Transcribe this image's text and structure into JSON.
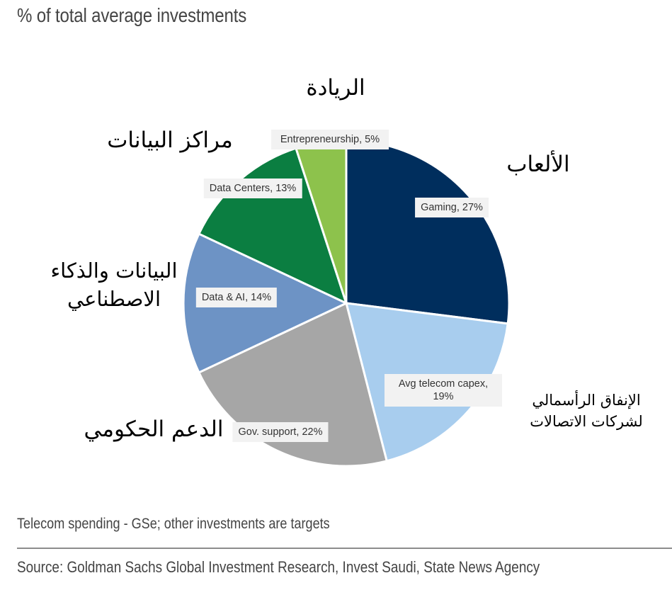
{
  "chart_data": {
    "type": "pie",
    "subtitle": "% of total average investments",
    "unit": "%",
    "slices": [
      {
        "label": "Gaming, 27%",
        "category": "Gaming",
        "value": 27,
        "color": "#002e5d",
        "arabic": "الألعاب"
      },
      {
        "label": "Avg telecom capex, 19%",
        "category": "Avg telecom capex",
        "value": 19,
        "color": "#a8cdee",
        "arabic": "الإنفاق الرأسمالي لشركات الاتصالات"
      },
      {
        "label": "Gov. support, 22%",
        "category": "Gov. support",
        "value": 22,
        "color": "#a6a6a6",
        "arabic": "الدعم الحكومي"
      },
      {
        "label": "Data & AI, 14%",
        "category": "Data & AI",
        "value": 14,
        "color": "#6d93c5",
        "arabic": "البيانات والذكاء الاصطناعي"
      },
      {
        "label": "Data Centers, 13%",
        "category": "Data Centers",
        "value": 13,
        "color": "#0b7e41",
        "arabic": "مراكز البيانات"
      },
      {
        "label": "Entrepreneurship, 5%",
        "category": "Entrepreneurship",
        "value": 5,
        "color": "#8dc24c",
        "arabic": "الريادة"
      }
    ]
  },
  "note": "Telecom spending - GSe; other investments are targets",
  "source": "Source: Goldman Sachs Global Investment Research, Invest Saudi, State News Agency"
}
